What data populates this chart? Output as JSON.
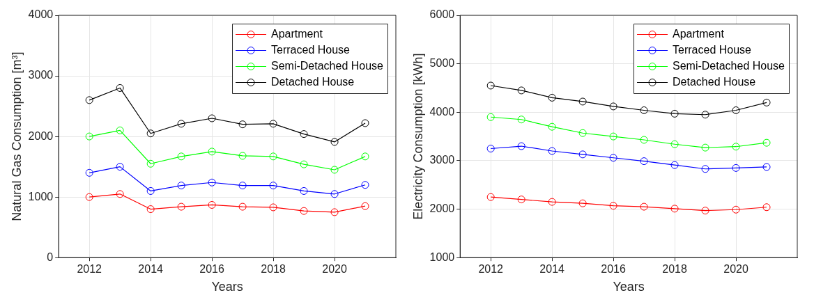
{
  "chart_data": [
    {
      "type": "line",
      "xlabel": "Years",
      "ylabel": "Natural Gas Consumption [m³]",
      "x": [
        2012,
        2013,
        2014,
        2015,
        2016,
        2017,
        2018,
        2019,
        2020,
        2021
      ],
      "xlim": [
        2011,
        2022
      ],
      "xticks": [
        2012,
        2014,
        2016,
        2018,
        2020
      ],
      "ylim": [
        0,
        4000
      ],
      "yticks": [
        0,
        1000,
        2000,
        3000,
        4000
      ],
      "grid": true,
      "legend": "top right",
      "marker": "circle",
      "line_style": "solid",
      "series": [
        {
          "name": "Apartment",
          "color": "#ff0000",
          "values": [
            1000,
            1050,
            800,
            840,
            870,
            840,
            830,
            770,
            750,
            850
          ]
        },
        {
          "name": "Terraced House",
          "color": "#0000ff",
          "values": [
            1400,
            1500,
            1100,
            1190,
            1240,
            1190,
            1190,
            1100,
            1050,
            1200
          ]
        },
        {
          "name": "Semi-Detached House",
          "color": "#00ff00",
          "values": [
            2000,
            2100,
            1550,
            1670,
            1750,
            1680,
            1670,
            1540,
            1450,
            1670
          ]
        },
        {
          "name": "Detached House",
          "color": "#000000",
          "values": [
            2600,
            2800,
            2050,
            2210,
            2300,
            2200,
            2210,
            2040,
            1910,
            2220
          ]
        }
      ]
    },
    {
      "type": "line",
      "xlabel": "Years",
      "ylabel": "Electricity Consumption [kWh]",
      "x": [
        2012,
        2013,
        2014,
        2015,
        2016,
        2017,
        2018,
        2019,
        2020,
        2021
      ],
      "xlim": [
        2011,
        2022
      ],
      "xticks": [
        2012,
        2014,
        2016,
        2018,
        2020
      ],
      "ylim": [
        1000,
        6000
      ],
      "yticks": [
        1000,
        2000,
        3000,
        4000,
        5000,
        6000
      ],
      "grid": true,
      "legend": "top right",
      "marker": "circle",
      "line_style": "solid",
      "series": [
        {
          "name": "Apartment",
          "color": "#ff0000",
          "values": [
            2250,
            2200,
            2150,
            2120,
            2070,
            2050,
            2010,
            1970,
            1990,
            2040
          ]
        },
        {
          "name": "Terraced House",
          "color": "#0000ff",
          "values": [
            3250,
            3300,
            3200,
            3130,
            3060,
            2990,
            2910,
            2830,
            2850,
            2870
          ]
        },
        {
          "name": "Semi-Detached House",
          "color": "#00ff00",
          "values": [
            3900,
            3850,
            3700,
            3570,
            3500,
            3430,
            3340,
            3270,
            3290,
            3370
          ]
        },
        {
          "name": "Detached House",
          "color": "#000000",
          "values": [
            4550,
            4450,
            4300,
            4220,
            4120,
            4040,
            3970,
            3950,
            4040,
            4200
          ]
        }
      ]
    }
  ]
}
